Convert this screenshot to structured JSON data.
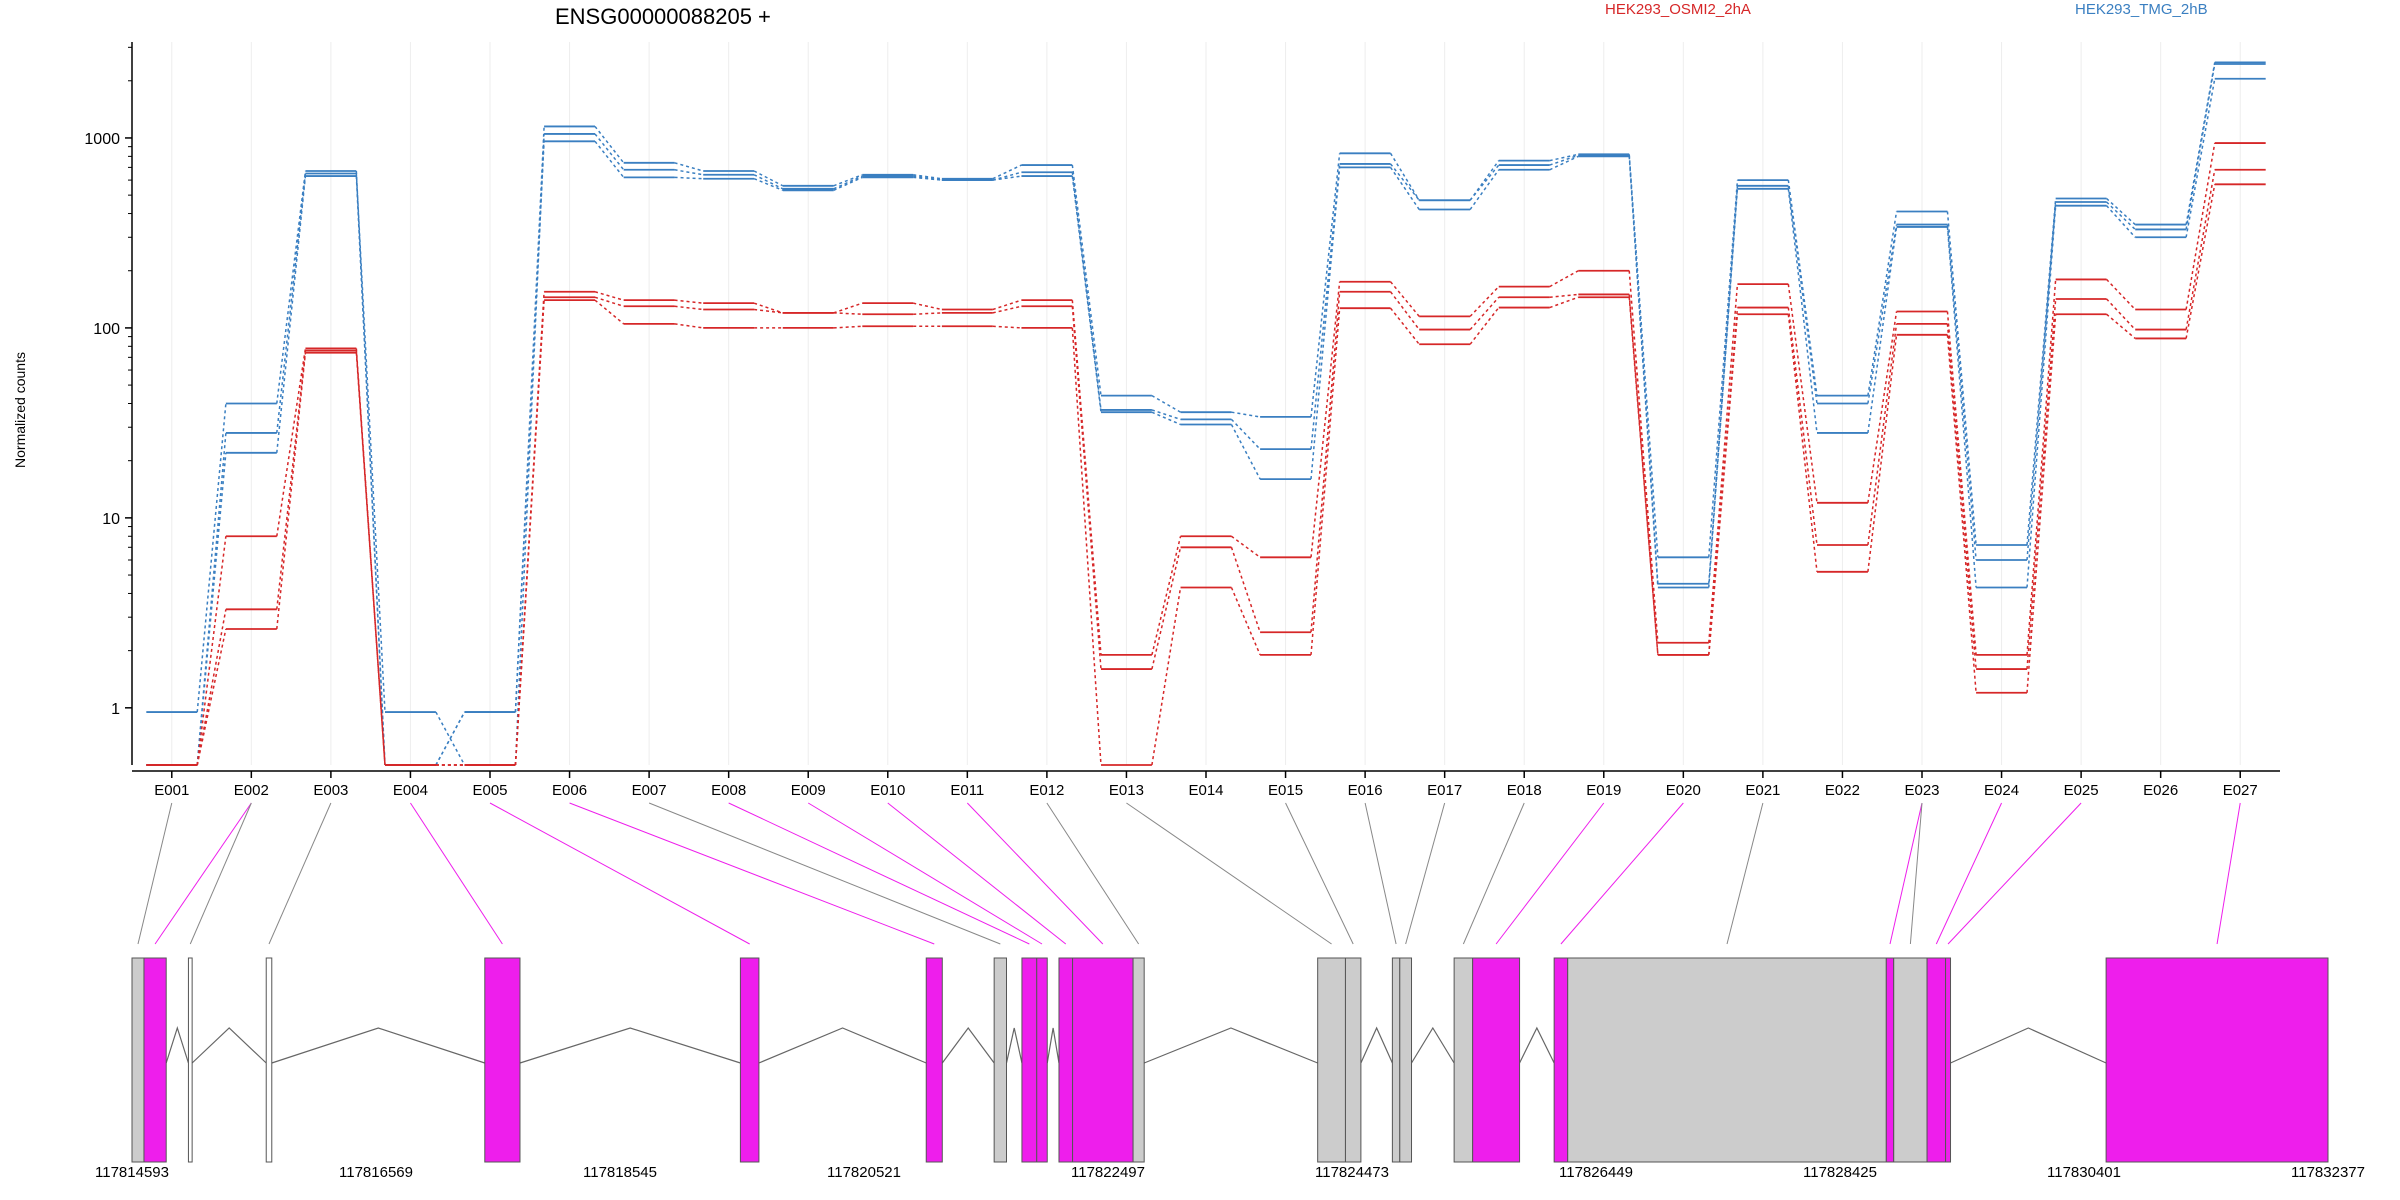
{
  "chart_data": {
    "type": "line",
    "title": "ENSG00000088205 +",
    "ylabel": "Normalized counts",
    "yscale": "log",
    "ylim": [
      0.5,
      3200
    ],
    "yticks": [
      1,
      10,
      100,
      1000
    ],
    "ytick_labels": [
      "1",
      "10",
      "100",
      "1000"
    ],
    "categories": [
      "E001",
      "E002",
      "E003",
      "E004",
      "E005",
      "E006",
      "E007",
      "E008",
      "E009",
      "E010",
      "E011",
      "E012",
      "E013",
      "E014",
      "E015",
      "E016",
      "E017",
      "E018",
      "E019",
      "E020",
      "E021",
      "E022",
      "E023",
      "E024",
      "E025",
      "E026",
      "E027"
    ],
    "legend": [
      {
        "name": "HEK293_OSMI2_2hA",
        "color": "#d62728"
      },
      {
        "name": "HEK293_TMG_2hB",
        "color": "#3a7fc1"
      }
    ],
    "series": [
      {
        "group": "HEK293_TMG_2hB",
        "color": "#3a7fc1",
        "values": [
          0.95,
          40,
          670,
          0.5,
          0.95,
          1150,
          740,
          670,
          560,
          640,
          610,
          720,
          44,
          36,
          34,
          830,
          470,
          760,
          820,
          6.2,
          600,
          44,
          410,
          7.2,
          480,
          350,
          2500
        ]
      },
      {
        "group": "HEK293_TMG_2hB",
        "color": "#3a7fc1",
        "values": [
          0.5,
          28,
          650,
          0.95,
          0.5,
          1050,
          680,
          640,
          540,
          630,
          600,
          660,
          37,
          33,
          23,
          730,
          470,
          720,
          810,
          4.5,
          560,
          40,
          350,
          6.0,
          460,
          330,
          2450
        ]
      },
      {
        "group": "HEK293_TMG_2hB",
        "color": "#3a7fc1",
        "values": [
          0.5,
          22,
          630,
          0.5,
          0.95,
          960,
          620,
          610,
          530,
          620,
          600,
          630,
          36,
          31,
          16,
          700,
          420,
          680,
          800,
          4.3,
          540,
          28,
          340,
          4.3,
          440,
          300,
          2050
        ]
      },
      {
        "group": "HEK293_OSMI2_2hA",
        "color": "#d62728",
        "values": [
          0.5,
          8.0,
          78,
          0.5,
          0.5,
          155,
          140,
          135,
          120,
          135,
          125,
          140,
          1.9,
          8.0,
          6.2,
          175,
          115,
          165,
          200,
          2.2,
          170,
          12,
          122,
          1.9,
          180,
          125,
          940
        ]
      },
      {
        "group": "HEK293_OSMI2_2hA",
        "color": "#d62728",
        "values": [
          0.5,
          3.3,
          76,
          0.5,
          0.5,
          145,
          130,
          125,
          120,
          118,
          120,
          130,
          1.6,
          7.0,
          2.5,
          155,
          98,
          145,
          150,
          1.9,
          128,
          7.2,
          105,
          1.6,
          142,
          98,
          680
        ]
      },
      {
        "group": "HEK293_OSMI2_2hA",
        "color": "#d62728",
        "values": [
          0.5,
          2.6,
          74,
          0.5,
          0.5,
          140,
          105,
          100,
          100,
          102,
          102,
          100,
          0.5,
          4.3,
          1.9,
          127,
          82,
          128,
          145,
          1.9,
          118,
          5.2,
          92,
          1.2,
          118,
          88,
          570
        ]
      }
    ],
    "gene_model": {
      "coord_labels": [
        "117814593",
        "117816569",
        "117818545",
        "117820521",
        "117822497",
        "117824473",
        "117826449",
        "117828425",
        "117830401",
        "117832377"
      ],
      "coord_start": 117814593,
      "coord_end": 117832377,
      "exon_color": "#ee1eec",
      "non_exon_color": "#cccccc",
      "exons": [
        {
          "id": "E001",
          "start": 117814593,
          "end": 117814690,
          "highlight": false
        },
        {
          "id": "E002",
          "start": 117814690,
          "end": 117814870,
          "highlight": true
        },
        {
          "id": "E003",
          "start": 117815050,
          "end": 117815080,
          "highlight": false,
          "outline": true
        },
        {
          "id": "E004",
          "start": 117815680,
          "end": 117815725,
          "highlight": false,
          "outline": true
        },
        {
          "id": "E005",
          "start": 117817450,
          "end": 117817735,
          "highlight": true
        },
        {
          "id": "E006",
          "start": 117819520,
          "end": 117819670,
          "highlight": true
        },
        {
          "id": "E007",
          "start": 117821025,
          "end": 117821155,
          "highlight": true
        },
        {
          "id": "E008",
          "start": 117821575,
          "end": 117821675,
          "highlight": false
        },
        {
          "id": "E009",
          "start": 117821800,
          "end": 117821920,
          "highlight": true
        },
        {
          "id": "E010",
          "start": 117821920,
          "end": 117822005,
          "highlight": true
        },
        {
          "id": "E011",
          "start": 117822100,
          "end": 117822210,
          "highlight": true
        },
        {
          "id": "E012",
          "start": 117822210,
          "end": 117822700,
          "highlight": true
        },
        {
          "id": "E013",
          "start": 117822700,
          "end": 117822790,
          "highlight": false
        },
        {
          "id": "E014",
          "start": 117824195,
          "end": 117824420,
          "highlight": false
        },
        {
          "id": "E015",
          "start": 117824420,
          "end": 117824545,
          "highlight": false
        },
        {
          "id": "E016",
          "start": 117824800,
          "end": 117824860,
          "highlight": false
        },
        {
          "id": "E017",
          "start": 117824860,
          "end": 117824955,
          "highlight": false
        },
        {
          "id": "E018",
          "start": 117825300,
          "end": 117825450,
          "highlight": false
        },
        {
          "id": "E019",
          "start": 117825450,
          "end": 117825830,
          "highlight": true
        },
        {
          "id": "E020",
          "start": 117826110,
          "end": 117826220,
          "highlight": true
        },
        {
          "id": "E021",
          "start": 117826220,
          "end": 117828800,
          "highlight": false
        },
        {
          "id": "E022",
          "start": 117828800,
          "end": 117828860,
          "highlight": true
        },
        {
          "id": "E023",
          "start": 117828860,
          "end": 117829130,
          "highlight": false
        },
        {
          "id": "E024",
          "start": 117829130,
          "end": 117829280,
          "highlight": true
        },
        {
          "id": "E025",
          "start": 117829280,
          "end": 117829320,
          "highlight": true
        },
        {
          "id": "E026",
          "start": 117830580,
          "end": 117832377,
          "highlight": true
        }
      ],
      "map_to_category": [
        0,
        1,
        1,
        2,
        3,
        4,
        5,
        6,
        7,
        8,
        9,
        10,
        11,
        12,
        14,
        15,
        16,
        17,
        18,
        19,
        20,
        22,
        22,
        23,
        24,
        26
      ]
    }
  }
}
